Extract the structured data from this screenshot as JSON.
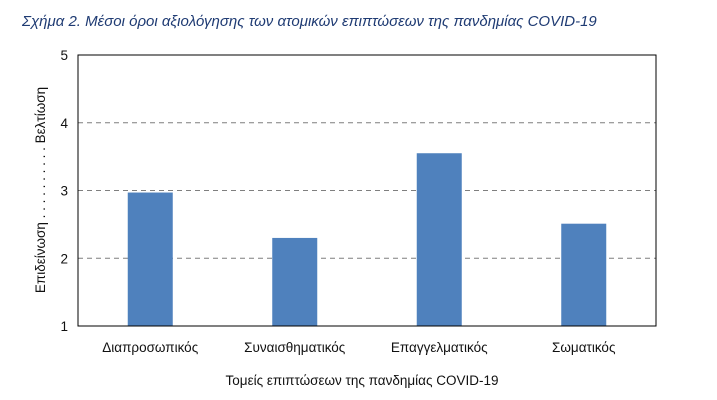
{
  "caption": "Σχήμα 2. Μέσοι όροι αξιολόγησης των ατομικών επιπτώσεων της πανδημίας COVID-19",
  "colors": {
    "bar": "#4f81bd",
    "gridline": "#7f7f7f",
    "axis": "#000000",
    "caption": "#1f3b73"
  },
  "chart_data": {
    "type": "bar",
    "title": "",
    "categories": [
      "Διαπροσωπικός",
      "Συναισθηματικός",
      "Επαγγελματικός",
      "Σωματικός"
    ],
    "values": [
      2.97,
      2.3,
      3.55,
      2.51
    ],
    "series": [
      {
        "values": [
          2.97,
          2.3,
          3.55,
          2.51
        ]
      }
    ],
    "xlabel": "Τομείς επιπτώσεων της πανδημίας COVID-19",
    "ylabel": "Επιδείνωση . . . . . . . . . . Βελτίωση",
    "ylim": [
      1,
      5
    ],
    "yticks": [
      "1",
      "2",
      "3",
      "4",
      "5"
    ],
    "grid": "horizontal dashed",
    "legend": "none"
  }
}
